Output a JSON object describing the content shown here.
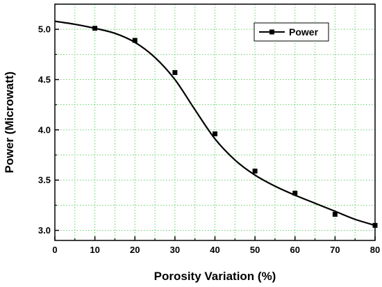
{
  "chart_data": {
    "type": "line",
    "xlabel": "Porosity Variation (%)",
    "ylabel": "Power (Microwatt)",
    "xlim": [
      0,
      80
    ],
    "ylim": [
      2.9,
      5.25
    ],
    "xticks": [
      0,
      10,
      20,
      30,
      40,
      50,
      60,
      70,
      80
    ],
    "yticks": [
      3.0,
      3.5,
      4.0,
      4.5,
      5.0
    ],
    "ytick_labels": [
      "3.0",
      "3.5",
      "4.0",
      "4.5",
      "5.0"
    ],
    "grid": true,
    "legend_position": "top-right",
    "line_color": "#000000",
    "grid_color": "#66cc66",
    "series": [
      {
        "name": "Power",
        "marker": "square",
        "x": [
          10,
          20,
          30,
          40,
          50,
          60,
          70,
          80
        ],
        "values": [
          5.01,
          4.89,
          4.57,
          3.96,
          3.59,
          3.37,
          3.16,
          3.05
        ],
        "fit_curve": {
          "x": [
            0,
            5,
            10,
            15,
            20,
            25,
            30,
            35,
            40,
            45,
            50,
            55,
            60,
            65,
            70,
            75,
            80
          ],
          "y": [
            5.08,
            5.05,
            5.01,
            4.96,
            4.87,
            4.72,
            4.5,
            4.2,
            3.91,
            3.7,
            3.55,
            3.44,
            3.35,
            3.27,
            3.19,
            3.11,
            3.05
          ]
        }
      }
    ]
  }
}
